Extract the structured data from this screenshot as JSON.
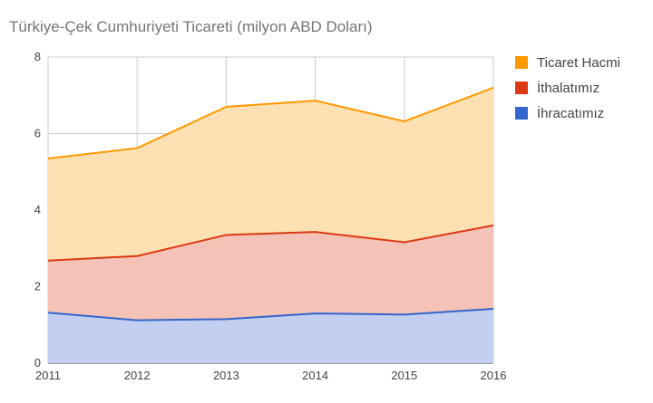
{
  "chart_data": {
    "type": "area",
    "title": "Türkiye-Çek Cumhuriyeti Ticareti (milyon ABD Doları)",
    "xlabel": "",
    "ylabel": "",
    "x": [
      "2011",
      "2012",
      "2013",
      "2014",
      "2015",
      "2016"
    ],
    "ylim": [
      0,
      8
    ],
    "yticks": [
      0,
      2,
      4,
      6,
      8
    ],
    "grid": true,
    "legend_position": "right",
    "series": [
      {
        "name": "Ticaret Hacmi",
        "color": "#ff9900",
        "fill": "#ffe0b2",
        "values": [
          5.35,
          5.62,
          6.7,
          6.86,
          6.32,
          7.2
        ]
      },
      {
        "name": "İthalatımız",
        "color": "#dc3912",
        "fill": "#f4c2b6",
        "values": [
          2.68,
          2.8,
          3.35,
          3.43,
          3.16,
          3.6
        ]
      },
      {
        "name": "İhracatımız",
        "color": "#3366cc",
        "fill": "#c2cff0",
        "values": [
          1.32,
          1.12,
          1.15,
          1.3,
          1.27,
          1.42
        ]
      }
    ]
  }
}
